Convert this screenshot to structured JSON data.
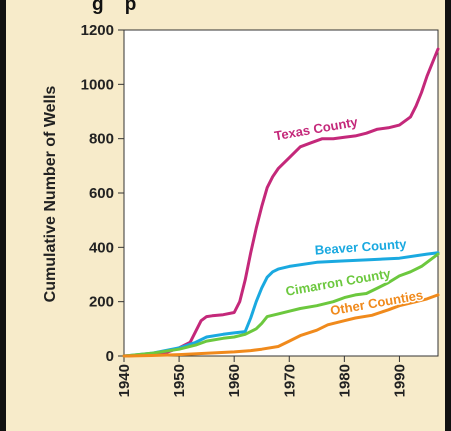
{
  "chart_data": {
    "type": "line",
    "title": "",
    "partial_title": "g    p",
    "xlabel": "",
    "ylabel": "Cumulative Number of Wells",
    "xlim": [
      1940,
      1997
    ],
    "ylim": [
      0,
      1200
    ],
    "xticks": [
      1940,
      1950,
      1960,
      1970,
      1980,
      1990
    ],
    "xtick_labels": [
      "1940",
      "1950",
      "1960",
      "1970",
      "1980",
      "1990"
    ],
    "yticks": [
      0,
      200,
      400,
      600,
      800,
      1000,
      1200
    ],
    "ytick_labels": [
      "0",
      "200",
      "400",
      "600",
      "800",
      "1000",
      "1200"
    ],
    "grid": false,
    "legend": "none",
    "plot_background": "#ffffff",
    "series": [
      {
        "name": "Texas County",
        "color": "#c4287a",
        "label_year": 1975,
        "label_value": 820,
        "label_rotation": -10,
        "x": [
          1940,
          1945,
          1948,
          1950,
          1952,
          1953,
          1954,
          1955,
          1956,
          1958,
          1960,
          1961,
          1962,
          1963,
          1964,
          1965,
          1966,
          1967,
          1968,
          1970,
          1972,
          1974,
          1976,
          1978,
          1980,
          1982,
          1984,
          1986,
          1988,
          1990,
          1992,
          1993,
          1994,
          1995,
          1996,
          1997
        ],
        "y": [
          0,
          5,
          15,
          30,
          50,
          90,
          130,
          145,
          148,
          152,
          160,
          200,
          280,
          380,
          470,
          550,
          620,
          660,
          690,
          730,
          770,
          785,
          800,
          800,
          805,
          810,
          820,
          835,
          840,
          850,
          880,
          920,
          970,
          1030,
          1080,
          1130
        ]
      },
      {
        "name": "Beaver County",
        "color": "#1aa9e0",
        "label_year": 1983,
        "label_value": 385,
        "label_rotation": -4,
        "x": [
          1940,
          1945,
          1950,
          1953,
          1955,
          1958,
          1960,
          1962,
          1963,
          1964,
          1965,
          1966,
          1967,
          1968,
          1970,
          1975,
          1980,
          1985,
          1990,
          1995,
          1997
        ],
        "y": [
          0,
          10,
          30,
          50,
          70,
          80,
          85,
          90,
          140,
          200,
          250,
          290,
          310,
          320,
          330,
          345,
          350,
          355,
          360,
          375,
          380
        ]
      },
      {
        "name": "Cimarron County",
        "color": "#6cc83e",
        "label_year": 1979,
        "label_value": 255,
        "label_rotation": -10,
        "x": [
          1940,
          1945,
          1950,
          1953,
          1955,
          1958,
          1960,
          1962,
          1964,
          1965,
          1966,
          1968,
          1970,
          1972,
          1975,
          1978,
          1980,
          1982,
          1984,
          1986,
          1988,
          1990,
          1992,
          1994,
          1996,
          1997
        ],
        "y": [
          0,
          10,
          25,
          40,
          55,
          65,
          70,
          80,
          100,
          120,
          145,
          155,
          165,
          175,
          185,
          200,
          215,
          225,
          230,
          250,
          270,
          295,
          310,
          330,
          360,
          375
        ]
      },
      {
        "name": "Other Counties",
        "color": "#f08a1c",
        "label_year": 1986,
        "label_value": 180,
        "label_rotation": -10,
        "x": [
          1940,
          1945,
          1950,
          1955,
          1960,
          1963,
          1965,
          1968,
          1970,
          1972,
          1975,
          1977,
          1980,
          1982,
          1985,
          1988,
          1990,
          1993,
          1995,
          1997
        ],
        "y": [
          0,
          2,
          5,
          10,
          15,
          20,
          25,
          35,
          55,
          75,
          95,
          115,
          130,
          140,
          150,
          170,
          185,
          200,
          210,
          225
        ]
      }
    ]
  }
}
